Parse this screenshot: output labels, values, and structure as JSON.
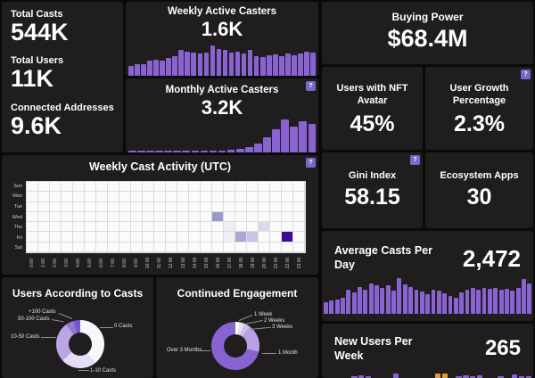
{
  "theme": {
    "background": "#0b0a0a",
    "card": "#201d1e",
    "accent": "#8a63d2",
    "alt_accent": "#e09c3a",
    "badge": "#7a68c9"
  },
  "help_icon": "?",
  "kpis_left": {
    "items": [
      {
        "label": "Total Casts",
        "value": "544K"
      },
      {
        "label": "Total Users",
        "value": "11K"
      },
      {
        "label": "Connected Addresses",
        "value": "9.6K"
      }
    ]
  },
  "weekly_active": {
    "title": "Weekly Active Casters",
    "value": "1.6K"
  },
  "monthly_active": {
    "title": "Monthly Active Casters",
    "value": "3.2K"
  },
  "buying_power": {
    "title": "Buying Power",
    "value": "$68.4M"
  },
  "nft_avatar": {
    "title": "Users with NFT Avatar",
    "value": "45%"
  },
  "user_growth": {
    "title": "User Growth Percentage",
    "value": "2.3%"
  },
  "gini": {
    "title": "Gini Index",
    "value": "58.15"
  },
  "ecosystem": {
    "title": "Ecosystem Apps",
    "value": "30"
  },
  "heatmap_card": {
    "title": "Weekly Cast Activity (UTC)"
  },
  "users_casts_card": {
    "title": "Users According to Casts"
  },
  "engagement_card": {
    "title": "Continued Engagement"
  },
  "avg_casts": {
    "title": "Average Casts Per Day",
    "value": "2,472"
  },
  "new_users": {
    "title": "New Users Per Week",
    "value": "265"
  },
  "chart_data": [
    {
      "id": "weekly_active_bars",
      "type": "bar",
      "title": "Weekly Active Casters trend",
      "color": "#8a63d2",
      "ylim": [
        0,
        1
      ],
      "grid": false,
      "axis_labels": "none",
      "values": [
        0.28,
        0.33,
        0.33,
        0.42,
        0.46,
        0.42,
        0.5,
        0.55,
        0.72,
        0.68,
        0.65,
        0.62,
        0.65,
        0.85,
        0.75,
        0.72,
        0.65,
        0.68,
        0.62,
        0.72,
        0.55,
        0.52,
        0.58,
        0.6,
        0.55,
        0.62,
        0.58,
        0.62,
        0.68,
        0.65
      ]
    },
    {
      "id": "monthly_active_bars",
      "type": "bar",
      "title": "Monthly Active Casters trend",
      "color": "#8a63d2",
      "ylim": [
        0,
        1
      ],
      "grid": false,
      "axis_labels": "none",
      "values": [
        0.04,
        0.04,
        0.04,
        0.04,
        0.04,
        0.04,
        0.05,
        0.05,
        0.05,
        0.06,
        0.06,
        0.08,
        0.1,
        0.15,
        0.25,
        0.42,
        0.65,
        0.92,
        0.72,
        0.88,
        0.8
      ]
    },
    {
      "id": "weekly_cast_activity",
      "type": "heatmap",
      "title": "Weekly Cast Activity (UTC)",
      "rows": [
        "Sun",
        "Mon",
        "Tue",
        "Wed",
        "Thu",
        "Fri",
        "Sat"
      ],
      "cols": [
        "0:00",
        "1:00",
        "2:00",
        "3:00",
        "4:00",
        "5:00",
        "6:00",
        "7:00",
        "8:00",
        "9:00",
        "10:00",
        "11:00",
        "12:00",
        "13:00",
        "14:00",
        "15:00",
        "16:00",
        "17:00",
        "18:00",
        "19:00",
        "20:00",
        "21:00",
        "22:00",
        "23:00"
      ],
      "cells": [
        {
          "day": "Wed",
          "hour": 16,
          "color": "#9a99ce",
          "intensity": "medium"
        },
        {
          "day": "Thu",
          "hour": 17,
          "color": "#efeff7",
          "intensity": "very-low"
        },
        {
          "day": "Thu",
          "hour": 20,
          "color": "#dadaed",
          "intensity": "low"
        },
        {
          "day": "Fri",
          "hour": 17,
          "color": "#efeff7",
          "intensity": "very-low"
        },
        {
          "day": "Fri",
          "hour": 18,
          "color": "#a9a8d6",
          "intensity": "medium"
        },
        {
          "day": "Fri",
          "hour": 19,
          "color": "#c7c6e5",
          "intensity": "low-medium"
        },
        {
          "day": "Fri",
          "hour": 22,
          "color": "#3a0d9e",
          "intensity": "high"
        }
      ]
    },
    {
      "id": "users_according_to_casts",
      "type": "pie",
      "title": "Users According to Casts",
      "labels": [
        "0 Casts",
        "1-10 Casts",
        "10-50 Casts",
        "50-100 Casts",
        "+100 Casts"
      ],
      "values": [
        39,
        24,
        27,
        5.5,
        4.5
      ],
      "colors": [
        "#f8f7fc",
        "#e5dff5",
        "#b9a6e3",
        "#9277d3",
        "#7a57c8"
      ],
      "donut": true,
      "legend_position": "callouts"
    },
    {
      "id": "continued_engagement",
      "type": "pie",
      "title": "Continued Engagement",
      "labels": [
        "1 Week",
        "2 Weeks",
        "3 Weeks",
        "1 Month",
        "Over 3 Months"
      ],
      "values": [
        2.8,
        3.2,
        4,
        19,
        71
      ],
      "colors": [
        "#ffffff",
        "#e5dff5",
        "#cdbfec",
        "#b7a3e3",
        "#8a63d2"
      ],
      "donut": true,
      "legend_position": "callouts"
    },
    {
      "id": "avg_casts_per_day_bars",
      "type": "bar",
      "title": "Average Casts Per Day trend",
      "color": "#8a63d2",
      "ylim": [
        0,
        1
      ],
      "grid": false,
      "axis_labels": "none",
      "values": [
        0.3,
        0.33,
        0.36,
        0.4,
        0.62,
        0.55,
        0.68,
        0.62,
        0.78,
        0.72,
        0.66,
        0.72,
        0.6,
        0.92,
        0.74,
        0.68,
        0.62,
        0.56,
        0.5,
        0.62,
        0.58,
        0.52,
        0.45,
        0.4,
        0.54,
        0.62,
        0.65,
        0.62,
        0.66,
        0.63,
        0.66,
        0.62,
        0.64,
        0.6,
        0.66,
        0.88,
        0.78
      ]
    },
    {
      "id": "new_users_per_week_bars",
      "type": "bar",
      "title": "New Users Per Week trend (clipped at viewport bottom)",
      "color": "#8a63d2",
      "alt_color": "#e09c3a",
      "unit": "px",
      "orange_indices": [
        16,
        17
      ],
      "values": [
        0,
        0,
        0,
        0,
        2,
        3,
        2,
        0,
        0,
        0,
        5,
        0,
        0,
        0,
        0,
        0,
        5,
        5,
        0,
        2,
        3,
        2,
        3,
        0,
        0,
        2,
        0,
        4,
        2,
        2
      ]
    }
  ]
}
